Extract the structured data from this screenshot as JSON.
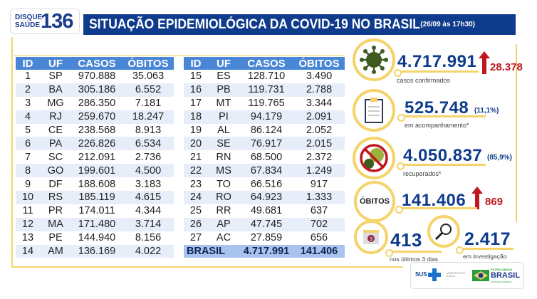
{
  "logo": {
    "line1": "DISQUE",
    "line2": "SAÚDE",
    "number": "136"
  },
  "header": {
    "title": "SITUAÇÃO EPIDEMIOLÓGICA DA COVID-19 NO BRASIL",
    "datetime": "(26/09 às 17h30)"
  },
  "table": {
    "columns": [
      "ID",
      "UF",
      "CASOS",
      "ÓBITOS"
    ],
    "left": [
      [
        "1",
        "SP",
        "970.888",
        "35.063"
      ],
      [
        "2",
        "BA",
        "305.186",
        "6.552"
      ],
      [
        "3",
        "MG",
        "286.350",
        "7.181"
      ],
      [
        "4",
        "RJ",
        "259.670",
        "18.247"
      ],
      [
        "5",
        "CE",
        "238.568",
        "8.913"
      ],
      [
        "6",
        "PA",
        "226.826",
        "6.534"
      ],
      [
        "7",
        "SC",
        "212.091",
        "2.736"
      ],
      [
        "8",
        "GO",
        "199.601",
        "4.500"
      ],
      [
        "9",
        "DF",
        "188.608",
        "3.183"
      ],
      [
        "10",
        "RS",
        "185.119",
        "4.615"
      ],
      [
        "11",
        "PR",
        "174.011",
        "4.344"
      ],
      [
        "12",
        "MA",
        "171.480",
        "3.714"
      ],
      [
        "13",
        "PE",
        "144.940",
        "8.156"
      ],
      [
        "14",
        "AM",
        "136.169",
        "4.022"
      ]
    ],
    "right": [
      [
        "15",
        "ES",
        "128.710",
        "3.490"
      ],
      [
        "16",
        "PB",
        "119.731",
        "2.788"
      ],
      [
        "17",
        "MT",
        "119.765",
        "3.344"
      ],
      [
        "18",
        "PI",
        "94.179",
        "2.091"
      ],
      [
        "19",
        "AL",
        "86.124",
        "2.052"
      ],
      [
        "20",
        "SE",
        "76.917",
        "2.015"
      ],
      [
        "21",
        "RN",
        "68.500",
        "2.372"
      ],
      [
        "22",
        "MS",
        "67.834",
        "1.249"
      ],
      [
        "23",
        "TO",
        "66.516",
        "917"
      ],
      [
        "24",
        "RO",
        "64.923",
        "1.333"
      ],
      [
        "25",
        "RR",
        "49.681",
        "637"
      ],
      [
        "26",
        "AP",
        "47.745",
        "702"
      ],
      [
        "27",
        "AC",
        "27.859",
        "656"
      ]
    ],
    "total": {
      "label": "BRASIL",
      "casos": "4.717.991",
      "obitos": "141.406"
    }
  },
  "stats": {
    "confirmed": {
      "value": "4.717.991",
      "increase": "28.378",
      "label": "casos confirmados",
      "icon": "virus-icon"
    },
    "monitoring": {
      "value": "525.748",
      "percent": "(11,1%)",
      "label": "em acompanhamento*",
      "icon": "clipboard-icon"
    },
    "recovered": {
      "value": "4.050.837",
      "percent": "(85,9%)",
      "label": "recuperados*",
      "icon": "no-virus-icon"
    },
    "deaths": {
      "badge": "ÓBITOS",
      "value": "141.406",
      "increase": "869"
    },
    "recent": {
      "value": "413",
      "label": "nos últimos 3 dias",
      "calendar_day": "3"
    },
    "investigation": {
      "value": "2.417",
      "label": "em investigação",
      "icon": "magnifier-icon"
    }
  },
  "footer": {
    "sus": "SUS",
    "ministry": "MINISTÉRIO DA SAÚDE",
    "slogan": "PÁTRIA AMADA",
    "brasil": "BRASIL",
    "gov": "GOVERNO FEDERAL"
  },
  "colors": {
    "navy": "#0e3b8c",
    "header_blue": "#4a86d6",
    "yellow": "#f5d36a",
    "red": "#c0171e"
  }
}
